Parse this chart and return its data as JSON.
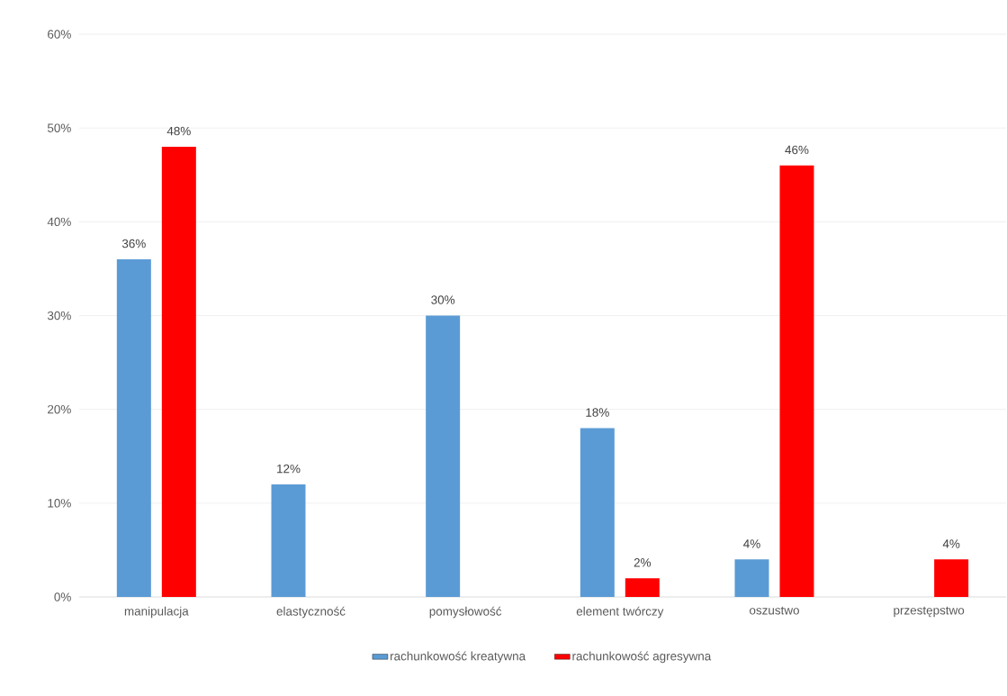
{
  "chart_data": {
    "type": "bar",
    "categories": [
      "manipulacja",
      "elastyczność",
      "pomysłowość",
      "element twórczy",
      "oszustwo",
      "przestępstwo"
    ],
    "series": [
      {
        "name": "rachunkowość kreatywna",
        "color": "#5b9bd5",
        "values": [
          36,
          12,
          30,
          18,
          4,
          null
        ],
        "value_labels": [
          "36%",
          "12%",
          "30%",
          "18%",
          "4%",
          null
        ]
      },
      {
        "name": "rachunkowość agresywna",
        "color": "#ff0000",
        "values": [
          48,
          null,
          null,
          2,
          46,
          4
        ],
        "value_labels": [
          "48%",
          null,
          null,
          "2%",
          "46%",
          "4%"
        ]
      }
    ],
    "ylim": [
      0,
      60
    ],
    "yticks": [
      {
        "value": 0,
        "label": "0%"
      },
      {
        "value": 10,
        "label": "10%"
      },
      {
        "value": 20,
        "label": "20%"
      },
      {
        "value": 30,
        "label": "30%"
      },
      {
        "value": 40,
        "label": "40%"
      },
      {
        "value": 50,
        "label": "50%"
      },
      {
        "value": 60,
        "label": "60%"
      }
    ],
    "grid": "y",
    "legend": "bottom"
  }
}
